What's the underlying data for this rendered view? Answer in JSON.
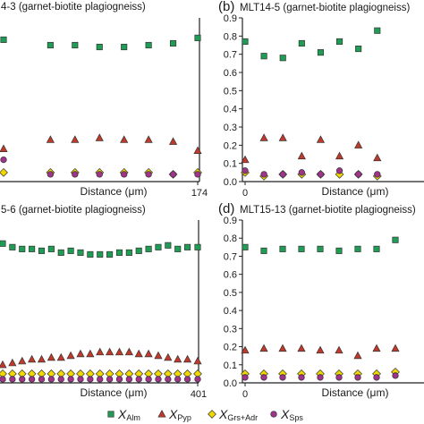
{
  "colors": {
    "alm": "#1f9d55",
    "pyp": "#c0392b",
    "grs": "#f2d600",
    "sps": "#a0338a",
    "axis": "#222222"
  },
  "legend": {
    "items": [
      {
        "key": "alm",
        "main": "X",
        "sub": "Alm",
        "marker": "square"
      },
      {
        "key": "pyp",
        "main": "X",
        "sub": "Pyp",
        "marker": "triangle"
      },
      {
        "key": "grs",
        "main": "X",
        "sub": "Grs+Adr",
        "marker": "diamond"
      },
      {
        "key": "sps",
        "main": "X",
        "sub": "Sps",
        "marker": "circle"
      }
    ]
  },
  "chart_data": [
    {
      "type": "scatter",
      "panel_title": "4-3 (garnet-biotite plagiogneiss)",
      "xlabel": "Distance (μm)",
      "x_ticks": [
        "174"
      ],
      "y_ticks": [],
      "xlim": [
        0,
        174
      ],
      "ylim": [
        0,
        0.9
      ],
      "x": [
        0,
        20,
        42,
        64,
        86,
        108,
        130,
        152,
        174
      ],
      "series": [
        {
          "key": "alm",
          "values": [
            0.78,
            null,
            0.75,
            0.75,
            0.74,
            0.74,
            0.75,
            0.76,
            0.79
          ]
        },
        {
          "key": "pyp",
          "values": [
            0.18,
            null,
            0.23,
            0.23,
            0.24,
            0.23,
            0.23,
            0.22,
            0.17
          ]
        },
        {
          "key": "grs",
          "values": [
            0.05,
            null,
            0.05,
            0.05,
            0.05,
            0.05,
            0.05,
            0.04,
            0.05
          ]
        },
        {
          "key": "sps",
          "values": [
            0.12,
            null,
            0.04,
            0.04,
            0.04,
            0.04,
            0.04,
            0.04,
            0.04
          ]
        }
      ]
    },
    {
      "type": "scatter",
      "panel_letter": "(b)",
      "panel_title": "MLT14-5 (garnet-biotite plagiogneiss)",
      "xlabel": "Distance (μm)",
      "x_ticks": [
        "0"
      ],
      "y_ticks": [
        "0.0",
        "0.1",
        "0.2",
        "0.3",
        "0.4",
        "0.5",
        "0.6",
        "0.7",
        "0.8",
        "0.9"
      ],
      "xlim": [
        0,
        10.1
      ],
      "ylim": [
        0,
        0.9
      ],
      "x": [
        0,
        1,
        2,
        3,
        4,
        5,
        6,
        7,
        8,
        9
      ],
      "series": [
        {
          "key": "alm",
          "values": [
            0.77,
            0.69,
            0.68,
            0.76,
            0.71,
            0.77,
            0.73,
            0.83,
            null,
            null
          ]
        },
        {
          "key": "pyp",
          "values": [
            0.12,
            0.24,
            0.24,
            0.14,
            0.23,
            0.14,
            0.2,
            0.13,
            null,
            null
          ]
        },
        {
          "key": "grs",
          "values": [
            0.05,
            0.03,
            0.04,
            0.04,
            0.04,
            0.04,
            0.04,
            0.03,
            null,
            null
          ]
        },
        {
          "key": "sps",
          "values": [
            0.06,
            0.04,
            0.04,
            0.05,
            0.04,
            0.06,
            0.04,
            0.04,
            null,
            null
          ]
        }
      ]
    },
    {
      "type": "scatter",
      "panel_title": "5-6 (garnet-biotite plagiogneiss)",
      "xlabel": "Distance (μm)",
      "x_ticks": [
        "401"
      ],
      "y_ticks": [],
      "xlim": [
        0,
        401
      ],
      "ylim": [
        0,
        0.9
      ],
      "x": [
        0,
        20,
        40,
        60,
        80,
        100,
        120,
        140,
        160,
        180,
        200,
        220,
        240,
        260,
        280,
        300,
        320,
        340,
        360,
        380,
        401
      ],
      "series": [
        {
          "key": "alm",
          "values": [
            0.77,
            0.75,
            0.74,
            0.74,
            0.73,
            0.74,
            0.72,
            0.73,
            0.72,
            0.71,
            0.71,
            0.71,
            0.72,
            0.72,
            0.73,
            0.74,
            0.75,
            0.76,
            0.74,
            0.75,
            0.75
          ]
        },
        {
          "key": "pyp",
          "values": [
            0.1,
            0.11,
            0.12,
            0.13,
            0.13,
            0.14,
            0.14,
            0.15,
            0.16,
            0.16,
            0.17,
            0.17,
            0.17,
            0.17,
            0.16,
            0.16,
            0.15,
            0.14,
            0.13,
            0.13,
            0.12
          ]
        },
        {
          "key": "grs",
          "values": [
            0.05,
            0.05,
            0.05,
            0.05,
            0.05,
            0.05,
            0.05,
            0.05,
            0.05,
            0.05,
            0.05,
            0.05,
            0.05,
            0.05,
            0.05,
            0.05,
            0.05,
            0.05,
            0.05,
            0.05,
            0.05
          ]
        },
        {
          "key": "sps",
          "values": [
            0.02,
            0.02,
            0.02,
            0.02,
            0.02,
            0.02,
            0.02,
            0.02,
            0.02,
            0.02,
            0.02,
            0.02,
            0.02,
            0.02,
            0.02,
            0.02,
            0.02,
            0.02,
            0.02,
            0.02,
            0.02
          ]
        }
      ]
    },
    {
      "type": "scatter",
      "panel_letter": "(d)",
      "panel_title": "MLT15-13 (garnet-biotite plagiogneiss)",
      "xlabel": "Distance (μm)",
      "x_ticks": [
        "0"
      ],
      "y_ticks": [
        "0.0",
        "0.1",
        "0.2",
        "0.3",
        "0.4",
        "0.5",
        "0.6",
        "0.7",
        "0.8",
        "0.9"
      ],
      "xlim": [
        0,
        10.1
      ],
      "ylim": [
        0,
        0.9
      ],
      "x": [
        0,
        1,
        2,
        3,
        4,
        5,
        6,
        7,
        8,
        9
      ],
      "series": [
        {
          "key": "alm",
          "values": [
            0.75,
            0.73,
            0.74,
            0.74,
            0.74,
            0.73,
            0.74,
            0.74,
            0.79,
            null
          ]
        },
        {
          "key": "pyp",
          "values": [
            0.18,
            0.19,
            0.19,
            0.19,
            0.18,
            0.18,
            0.15,
            0.19,
            0.19,
            null
          ]
        },
        {
          "key": "grs",
          "values": [
            0.05,
            0.05,
            0.05,
            0.05,
            0.05,
            0.05,
            0.05,
            0.05,
            0.06,
            null
          ]
        },
        {
          "key": "sps",
          "values": [
            0.03,
            0.03,
            0.03,
            0.03,
            0.03,
            0.03,
            0.03,
            0.03,
            0.04,
            null
          ]
        }
      ]
    }
  ]
}
